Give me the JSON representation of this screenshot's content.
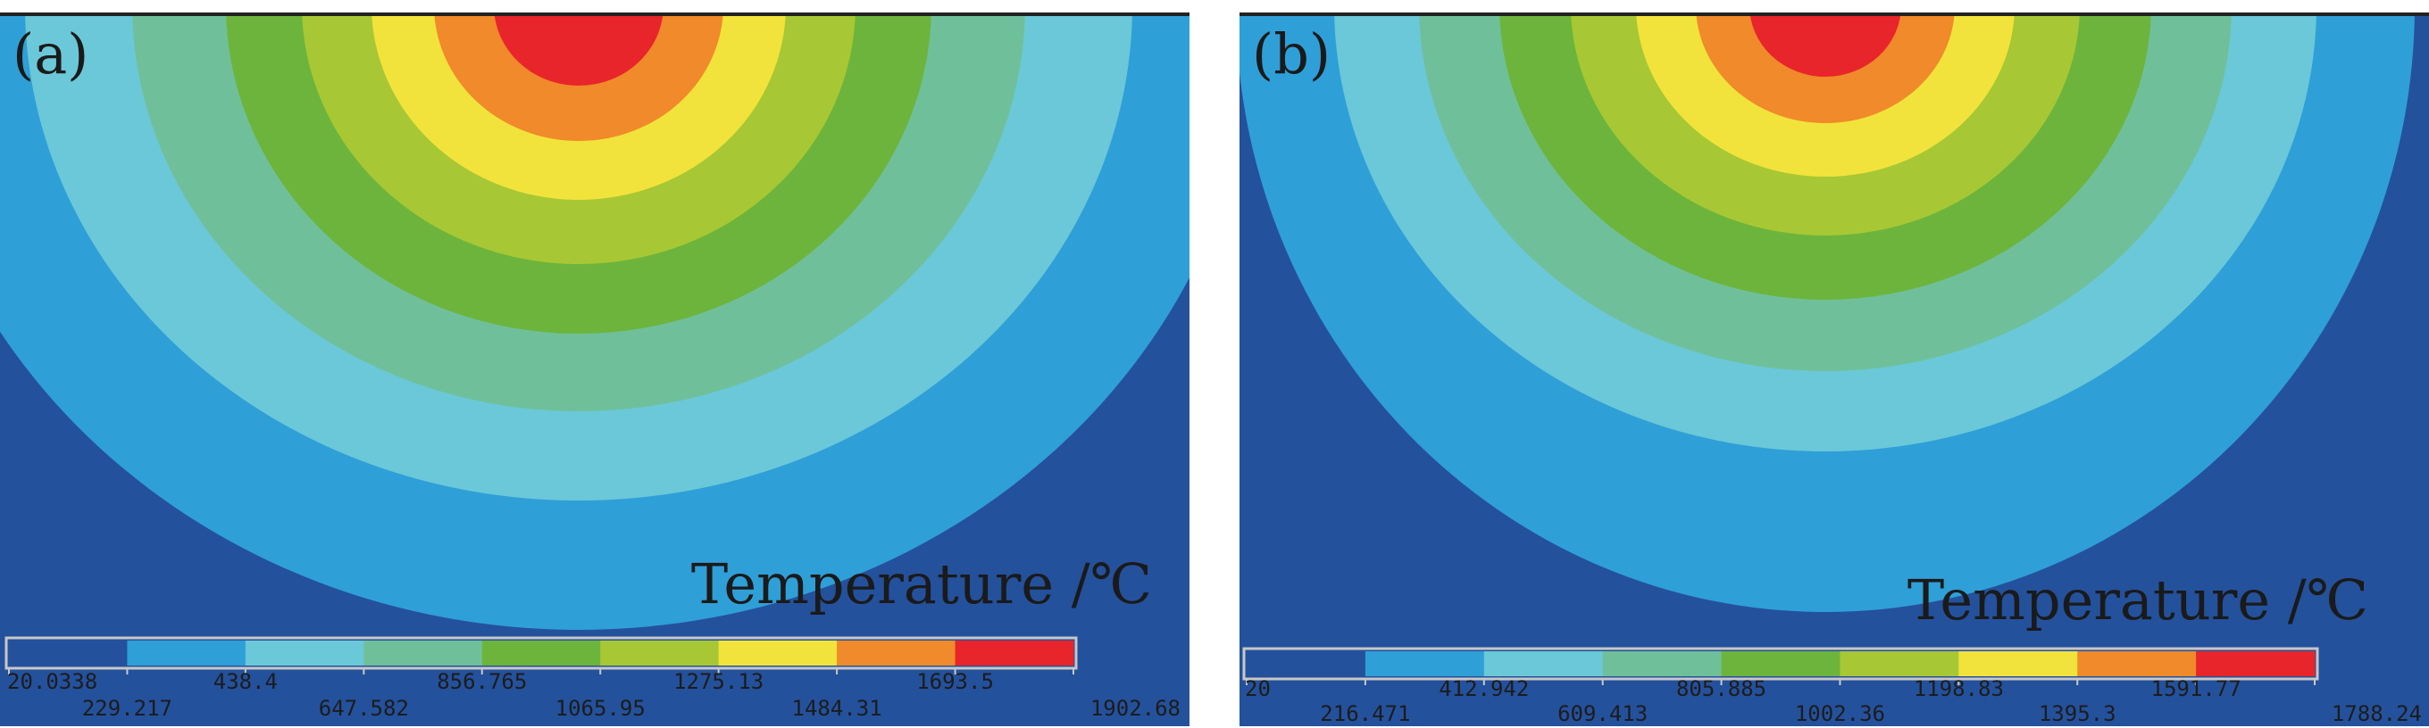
{
  "chart_data": [
    {
      "type": "heatmap",
      "panel_label": "(a)",
      "legend_title": "Temperature /℃",
      "min": 20.0338,
      "max": 1902.68,
      "levels": 9,
      "colors": [
        "#24519c",
        "#2f9fd8",
        "#6bc8d8",
        "#6fc09a",
        "#6db43c",
        "#a7c834",
        "#f2e33c",
        "#f08a2a",
        "#e8252a"
      ],
      "tick_labels": [
        "20.0338",
        "229.217",
        "438.4",
        "647.582",
        "856.765",
        "1065.95",
        "1275.13",
        "1484.31",
        "1693.5",
        "1902.68"
      ]
    },
    {
      "type": "heatmap",
      "panel_label": "(b)",
      "legend_title": "Temperature /℃",
      "min": 20,
      "max": 1788.24,
      "levels": 9,
      "colors": [
        "#24519c",
        "#2f9fd8",
        "#6bc8d8",
        "#6fc09a",
        "#6db43c",
        "#a7c834",
        "#f2e33c",
        "#f08a2a",
        "#e8252a"
      ],
      "tick_labels": [
        "20",
        "216.471",
        "412.942",
        "609.413",
        "805.885",
        "1002.36",
        "1198.83",
        "1395.3",
        "1591.77",
        "1788.24"
      ]
    }
  ]
}
